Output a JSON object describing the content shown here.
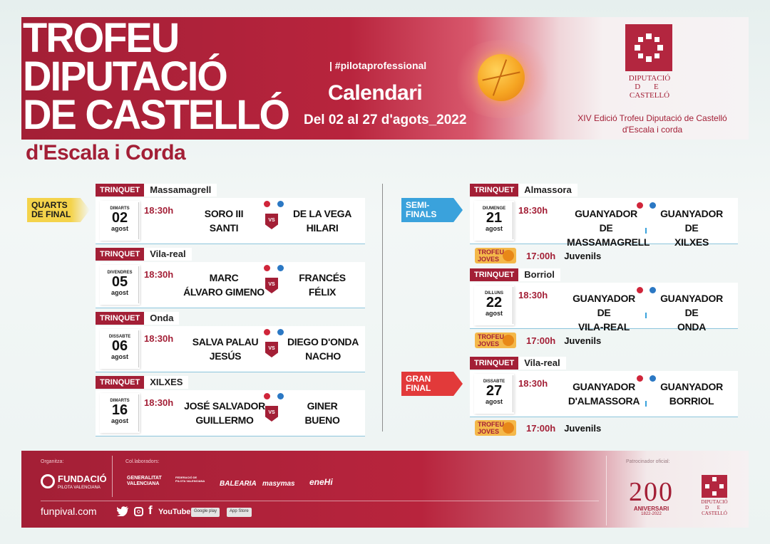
{
  "header": {
    "title_lines": [
      "TROFEU",
      "DIPUTACIÓ",
      "DE CASTELLÓ"
    ],
    "subtitle": "d'Escala i Corda",
    "hashtag": "| #pilotaprofessional",
    "calendar_title": "Calendari",
    "date_range": "Del 02 al 27 d'agots_2022",
    "logo_text": [
      "DIPUTACIÓ",
      "D E",
      "CASTELLÓ"
    ],
    "edition": [
      "XIV Edició Trofeu Diputació de Castelló",
      "d'Escala i corda"
    ]
  },
  "rounds": {
    "quarts": "QUARTS DE FINAL",
    "semi": "SEMI- FINALS",
    "gran": "GRAN FINAL"
  },
  "venue_tag": "TRINQUET",
  "quarterfinals": [
    {
      "venue": "Massamagrell",
      "dow": "DIMARTS",
      "day": "02",
      "month": "agost",
      "time": "18:30h",
      "home": [
        "SORO III",
        "SANTI"
      ],
      "away": [
        "DE LA VEGA",
        "HILARI"
      ]
    },
    {
      "venue": "Vila-real",
      "dow": "DIVENDRES",
      "day": "05",
      "month": "agost",
      "time": "18:30h",
      "home": [
        "MARC",
        "ÁLVARO GIMENO"
      ],
      "away": [
        "FRANCÉS",
        "FÉLIX"
      ]
    },
    {
      "venue": "Onda",
      "dow": "DISSABTE",
      "day": "06",
      "month": "agost",
      "time": "18:30h",
      "home": [
        "SALVA PALAU",
        "JESÚS"
      ],
      "away": [
        "DIEGO D'ONDA",
        "NACHO"
      ]
    },
    {
      "venue": "XILXES",
      "dow": "DIMARTS",
      "day": "16",
      "month": "agost",
      "time": "18:30h",
      "home": [
        "JOSÉ SALVADOR",
        "GUILLERMO"
      ],
      "away": [
        "GINER",
        "BUENO"
      ]
    }
  ],
  "finals": [
    {
      "venue": "Almassora",
      "dow": "DIUMENGE",
      "day": "21",
      "month": "agost",
      "time": "18:30h",
      "home": [
        "GUANYADOR DE",
        "MASSAMAGRELL"
      ],
      "away": [
        "GUANYADOR DE",
        "XILXES"
      ]
    },
    {
      "venue": "Borriol",
      "dow": "DILLUNS",
      "day": "22",
      "month": "agost",
      "time": "18:30h",
      "home": [
        "GUANYADOR DE",
        "VILA-REAL"
      ],
      "away": [
        "GUANYADOR DE",
        "ONDA"
      ]
    },
    {
      "venue": "Vila-real",
      "dow": "DISSABTE",
      "day": "27",
      "month": "agost",
      "time": "18:30h",
      "home": [
        "GUANYADOR",
        "D'ALMASSORA"
      ],
      "away": [
        "GUANYADOR",
        "BORRIOL"
      ]
    }
  ],
  "vs_label": "VS",
  "joves": {
    "badge": [
      "TROFEU",
      "JOVES"
    ],
    "time": "17:00h",
    "label": "Juvenils"
  },
  "footer": {
    "organitza": "Organitza:",
    "colaboradors": "Col.laboradors:",
    "patrocinador": "Patrocinador oficial:",
    "fundacio": "FUNDACIÓ",
    "fundacio_sub": "PILOTA VALENCIANA",
    "collaborators": [
      "GENERALITAT VALENCIANA",
      "FEDERACIÓ DE PILOTA VALENCIANA",
      "BALEARIA",
      "masymas",
      "eneHi"
    ],
    "website": "funpival.com",
    "social": [
      "Twitter",
      "Instagram",
      "f",
      "YouTube"
    ],
    "stores": [
      "Google play",
      "App Store"
    ],
    "anniversary": {
      "number": "200",
      "label": "ANIVERSARI",
      "years": "1822-2022"
    },
    "logo_text": [
      "DIPUTACIÓ",
      "D E",
      "CASTELLÓ"
    ]
  },
  "colors": {
    "brand": "#a31f36",
    "gold": "#f4d34b",
    "blue": "#3aa2dc",
    "red": "#e23a3a",
    "orange": "#f4b84a"
  }
}
